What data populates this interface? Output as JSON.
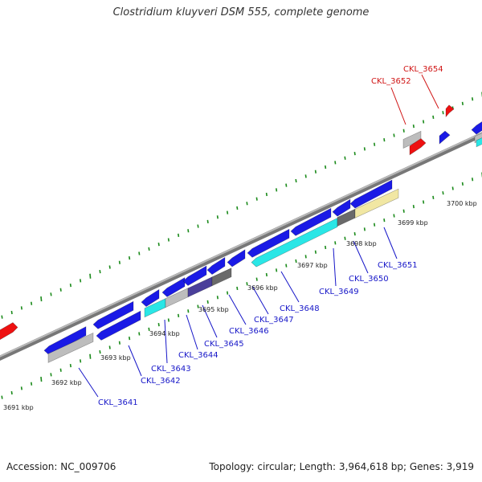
{
  "title": "Clostridium kluyveri DSM 555, complete genome",
  "footer": {
    "accession": "Accession: NC_009706",
    "topology": "Topology: circular; Length: 3,964,618 bp; Genes: 3,919"
  },
  "colors": {
    "cds": "#1a1ae6",
    "cds_cyan": "#2ae6e6",
    "cds_gray": "#bdbdbd",
    "cds_dark": "#6a6a6a",
    "cds_navy": "#4a3f9a",
    "cds_khaki": "#f1e7a3",
    "rna_red": "#ee1111",
    "label_blue": "#1616c8",
    "label_red": "#d01515",
    "tick_green": "#1a8a1a",
    "backbone": "#888888"
  },
  "ticks": [
    {
      "label": "3691 kbp"
    },
    {
      "label": "3692 kbp"
    },
    {
      "label": "3693 kbp"
    },
    {
      "label": "3694 kbp"
    },
    {
      "label": "3695 kbp"
    },
    {
      "label": "3696 kbp"
    },
    {
      "label": "3697 kbp"
    },
    {
      "label": "3698 kbp"
    },
    {
      "label": "3699 kbp"
    },
    {
      "label": "3700 kbp"
    }
  ],
  "genes": [
    {
      "id": "CKL_3641",
      "strand": "reverse"
    },
    {
      "id": "CKL_3642",
      "strand": "reverse"
    },
    {
      "id": "CKL_3643",
      "strand": "reverse"
    },
    {
      "id": "CKL_3644",
      "strand": "reverse"
    },
    {
      "id": "CKL_3645",
      "strand": "reverse"
    },
    {
      "id": "CKL_3646",
      "strand": "reverse"
    },
    {
      "id": "CKL_3647",
      "strand": "reverse"
    },
    {
      "id": "CKL_3648",
      "strand": "reverse"
    },
    {
      "id": "CKL_3649",
      "strand": "reverse"
    },
    {
      "id": "CKL_3650",
      "strand": "reverse"
    },
    {
      "id": "CKL_3651",
      "strand": "reverse"
    },
    {
      "id": "CKL_3652",
      "strand": "forward"
    },
    {
      "id": "CKL_3654",
      "strand": "forward"
    }
  ]
}
